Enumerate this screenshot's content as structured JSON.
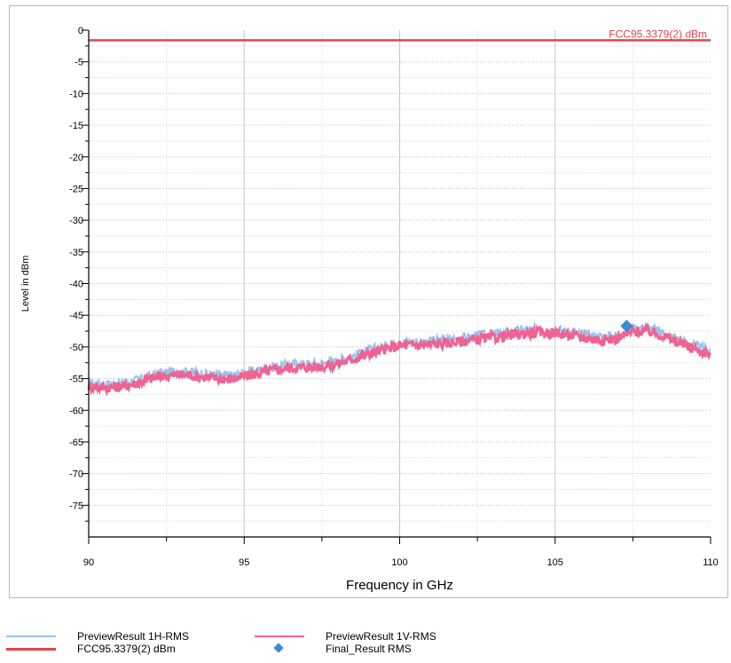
{
  "chart_data": {
    "type": "line",
    "xlabel": "Frequency in GHz",
    "ylabel": "Level in dBm",
    "xlim": [
      90,
      110
    ],
    "ylim": [
      -80,
      0
    ],
    "x_ticks": [
      90,
      95,
      100,
      105,
      110
    ],
    "y_ticks": [
      0,
      -5,
      -10,
      -15,
      -20,
      -25,
      -30,
      -35,
      -40,
      -45,
      -50,
      -55,
      -60,
      -65,
      -70,
      -75
    ],
    "grid": true,
    "limit_line": {
      "name": "FCC95.3379(2) dBm",
      "label": "FCC95.3379(2) dBm",
      "y": -1.6,
      "color": "#e8434b"
    },
    "series": [
      {
        "name": "PreviewResult 1H-RMS",
        "color": "#9cc3ec",
        "x": [
          90,
          90.5,
          91,
          91.5,
          92,
          92.5,
          93,
          93.5,
          94,
          94.5,
          95,
          95.5,
          96,
          96.5,
          97,
          97.5,
          98,
          98.5,
          99,
          99.5,
          100,
          100.5,
          101,
          101.5,
          102,
          102.5,
          103,
          103.5,
          104,
          104.5,
          105,
          105.5,
          106,
          106.5,
          107,
          107.5,
          108,
          108.5,
          109,
          109.5,
          110
        ],
        "values": [
          -55.7,
          -55.9,
          -55.8,
          -55.3,
          -54.6,
          -54.0,
          -53.9,
          -54.1,
          -54.4,
          -54.6,
          -54.2,
          -53.6,
          -53.1,
          -52.8,
          -52.7,
          -52.6,
          -52.2,
          -51.4,
          -50.6,
          -49.9,
          -49.3,
          -49.2,
          -49.1,
          -48.9,
          -48.6,
          -48.3,
          -48.0,
          -47.7,
          -47.4,
          -47.2,
          -47.3,
          -47.7,
          -48.1,
          -48.4,
          -48.2,
          -47.1,
          -47.0,
          -47.8,
          -48.9,
          -49.9,
          -50.6
        ]
      },
      {
        "name": "PreviewResult 1V-RMS",
        "color": "#f06292",
        "x": [
          90,
          90.5,
          91,
          91.5,
          92,
          92.5,
          93,
          93.5,
          94,
          94.5,
          95,
          95.5,
          96,
          96.5,
          97,
          97.5,
          98,
          98.5,
          99,
          99.5,
          100,
          100.5,
          101,
          101.5,
          102,
          102.5,
          103,
          103.5,
          104,
          104.5,
          105,
          105.5,
          106,
          106.5,
          107,
          107.5,
          108,
          108.5,
          109,
          109.5,
          110
        ],
        "values": [
          -56.2,
          -56.4,
          -56.3,
          -55.8,
          -55.0,
          -54.5,
          -54.4,
          -54.6,
          -54.9,
          -55.1,
          -54.7,
          -54.1,
          -53.6,
          -53.3,
          -53.2,
          -53.1,
          -52.7,
          -51.9,
          -51.1,
          -50.4,
          -49.8,
          -49.7,
          -49.6,
          -49.4,
          -49.1,
          -48.8,
          -48.5,
          -48.2,
          -47.9,
          -47.7,
          -47.8,
          -48.2,
          -48.6,
          -48.9,
          -48.7,
          -47.6,
          -47.5,
          -48.3,
          -49.4,
          -50.4,
          -51.1
        ]
      },
      {
        "name": "Final_Result RMS",
        "type": "scatter",
        "marker": "diamond",
        "color": "#3a8ad6",
        "x": [
          107.3
        ],
        "values": [
          -46.7
        ]
      }
    ],
    "legend": {
      "placement": "bottom",
      "entries": [
        {
          "label": "PreviewResult 1H-RMS",
          "kind": "line",
          "color": "#9cc3ec"
        },
        {
          "label": "PreviewResult 1V-RMS",
          "kind": "line",
          "color": "#f06292"
        },
        {
          "label": "FCC95.3379(2) dBm",
          "kind": "line",
          "color": "#e8434b"
        },
        {
          "label": "Final_Result RMS",
          "kind": "diamond",
          "color": "#3a8ad6"
        }
      ]
    }
  }
}
